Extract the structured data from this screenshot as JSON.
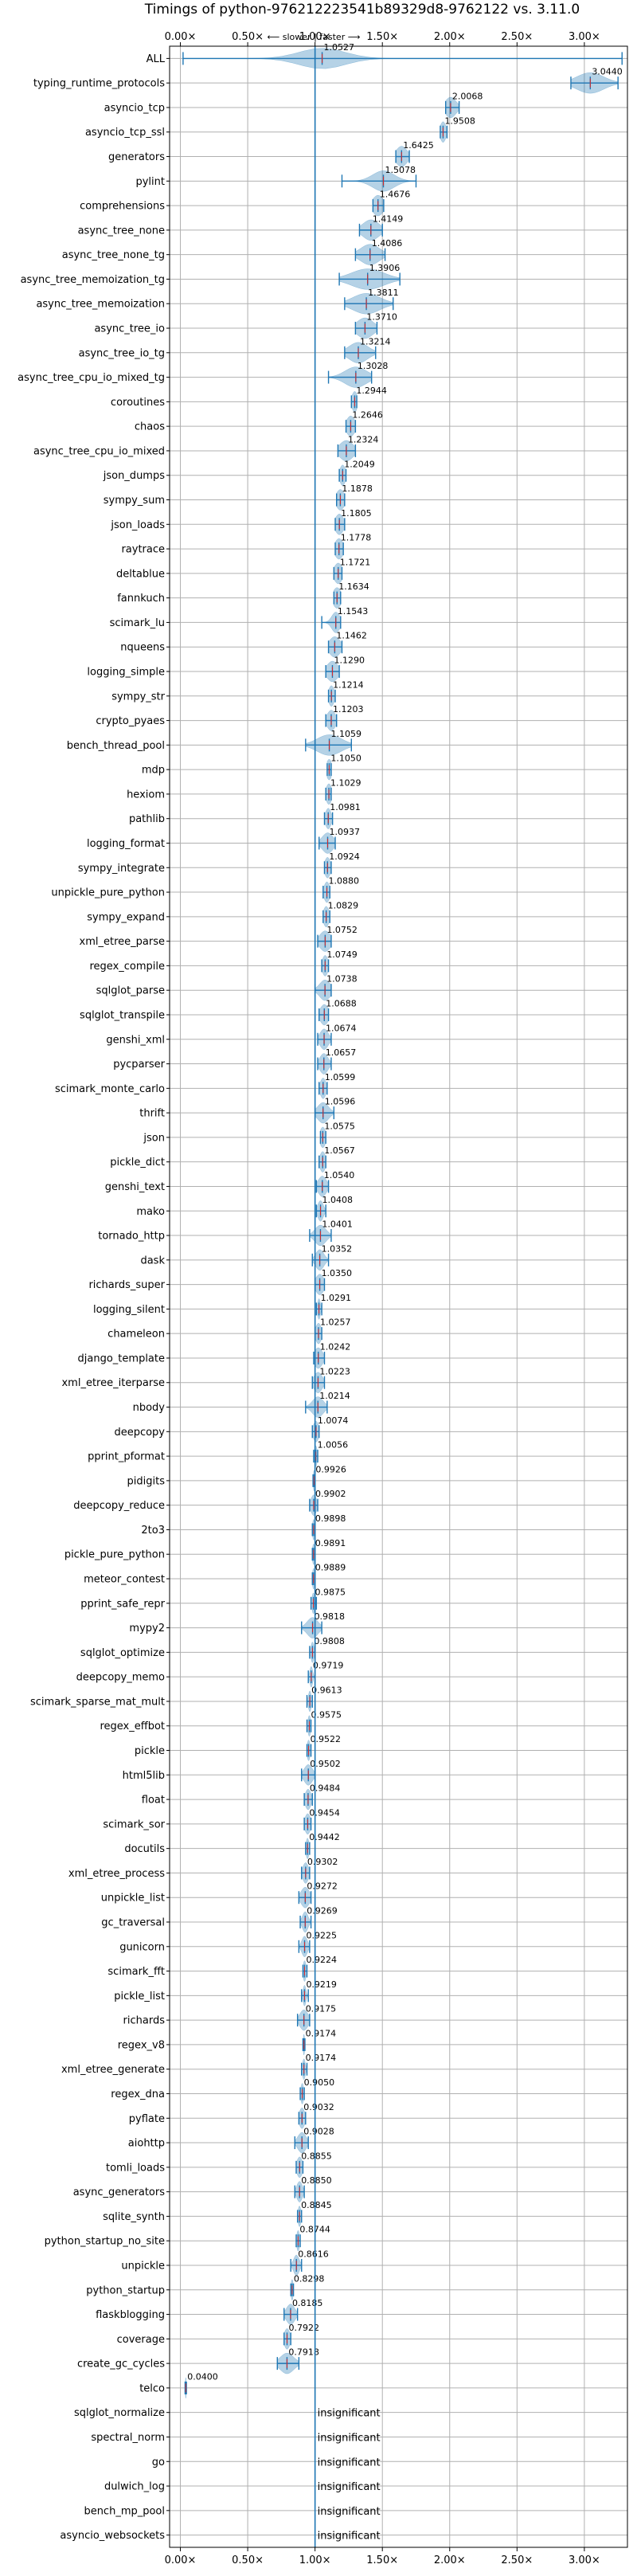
{
  "chart_data": {
    "type": "violin",
    "title": "Timings of python-976212223541b89329d8-9762122 vs. 3.11.0",
    "annotation": "⟵ slower | faster ⟶",
    "xlabel": "",
    "ylabel": "",
    "xlim": [
      -0.08,
      3.32
    ],
    "x_ticks": [
      0.0,
      0.5,
      1.0,
      1.5,
      2.0,
      2.5,
      3.0
    ],
    "x_tick_labels": [
      "0.00×",
      "0.50×",
      "1.00×",
      "1.50×",
      "2.00×",
      "2.50×",
      "3.00×"
    ],
    "reference_line": 1.0,
    "grid": true,
    "colors": {
      "violin": "#1f77b4",
      "median_marker": "#d62728",
      "grid": "#b0b0b0"
    },
    "insignificant_text": "insignificant",
    "benchmarks": [
      {
        "name": "ALL",
        "value": 1.0527,
        "label": "1.0527",
        "low": 0.02,
        "high": 3.28,
        "spread": 0.17
      },
      {
        "name": "typing_runtime_protocols",
        "value": 3.044,
        "label": "3.0440",
        "low": 2.9,
        "high": 3.25,
        "spread": 0.1
      },
      {
        "name": "asyncio_tcp",
        "value": 2.0068,
        "label": "2.0068",
        "low": 1.97,
        "high": 2.07,
        "spread": 0.04
      },
      {
        "name": "asyncio_tcp_ssl",
        "value": 1.9508,
        "label": "1.9508",
        "low": 1.93,
        "high": 1.98,
        "spread": 0.02
      },
      {
        "name": "generators",
        "value": 1.6425,
        "label": "1.6425",
        "low": 1.6,
        "high": 1.7,
        "spread": 0.04
      },
      {
        "name": "pylint",
        "value": 1.5078,
        "label": "1.5078",
        "low": 1.2,
        "high": 1.75,
        "spread": 0.08
      },
      {
        "name": "comprehensions",
        "value": 1.4676,
        "label": "1.4676",
        "low": 1.43,
        "high": 1.51,
        "spread": 0.04
      },
      {
        "name": "async_tree_none",
        "value": 1.4149,
        "label": "1.4149",
        "low": 1.33,
        "high": 1.5,
        "spread": 0.06
      },
      {
        "name": "async_tree_none_tg",
        "value": 1.4086,
        "label": "1.4086",
        "low": 1.3,
        "high": 1.52,
        "spread": 0.07
      },
      {
        "name": "async_tree_memoization_tg",
        "value": 1.3906,
        "label": "1.3906",
        "low": 1.18,
        "high": 1.63,
        "spread": 0.12
      },
      {
        "name": "async_tree_memoization",
        "value": 1.3811,
        "label": "1.3811",
        "low": 1.22,
        "high": 1.58,
        "spread": 0.1
      },
      {
        "name": "async_tree_io",
        "value": 1.371,
        "label": "1.3710",
        "low": 1.3,
        "high": 1.46,
        "spread": 0.06
      },
      {
        "name": "async_tree_io_tg",
        "value": 1.3214,
        "label": "1.3214",
        "low": 1.22,
        "high": 1.45,
        "spread": 0.07
      },
      {
        "name": "async_tree_cpu_io_mixed_tg",
        "value": 1.3028,
        "label": "1.3028",
        "low": 1.1,
        "high": 1.42,
        "spread": 0.08
      },
      {
        "name": "coroutines",
        "value": 1.2944,
        "label": "1.2944",
        "low": 1.27,
        "high": 1.31,
        "spread": 0.02
      },
      {
        "name": "chaos",
        "value": 1.2646,
        "label": "1.2646",
        "low": 1.23,
        "high": 1.3,
        "spread": 0.03
      },
      {
        "name": "async_tree_cpu_io_mixed",
        "value": 1.2324,
        "label": "1.2324",
        "low": 1.17,
        "high": 1.3,
        "spread": 0.05
      },
      {
        "name": "json_dumps",
        "value": 1.2049,
        "label": "1.2049",
        "low": 1.18,
        "high": 1.23,
        "spread": 0.02
      },
      {
        "name": "sympy_sum",
        "value": 1.1878,
        "label": "1.1878",
        "low": 1.16,
        "high": 1.22,
        "spread": 0.03
      },
      {
        "name": "json_loads",
        "value": 1.1805,
        "label": "1.1805",
        "low": 1.15,
        "high": 1.22,
        "spread": 0.03
      },
      {
        "name": "raytrace",
        "value": 1.1778,
        "label": "1.1778",
        "low": 1.15,
        "high": 1.21,
        "spread": 0.03
      },
      {
        "name": "deltablue",
        "value": 1.1721,
        "label": "1.1721",
        "low": 1.14,
        "high": 1.2,
        "spread": 0.03
      },
      {
        "name": "fannkuch",
        "value": 1.1634,
        "label": "1.1634",
        "low": 1.14,
        "high": 1.19,
        "spread": 0.03
      },
      {
        "name": "scimark_lu",
        "value": 1.1543,
        "label": "1.1543",
        "low": 1.05,
        "high": 1.19,
        "spread": 0.03
      },
      {
        "name": "nqueens",
        "value": 1.1462,
        "label": "1.1462",
        "low": 1.1,
        "high": 1.2,
        "spread": 0.04
      },
      {
        "name": "logging_simple",
        "value": 1.129,
        "label": "1.1290",
        "low": 1.08,
        "high": 1.18,
        "spread": 0.04
      },
      {
        "name": "sympy_str",
        "value": 1.1214,
        "label": "1.1214",
        "low": 1.1,
        "high": 1.15,
        "spread": 0.02
      },
      {
        "name": "crypto_pyaes",
        "value": 1.1203,
        "label": "1.1203",
        "low": 1.08,
        "high": 1.16,
        "spread": 0.03
      },
      {
        "name": "bench_thread_pool",
        "value": 1.1059,
        "label": "1.1059",
        "low": 0.93,
        "high": 1.27,
        "spread": 0.09
      },
      {
        "name": "mdp",
        "value": 1.105,
        "label": "1.1050",
        "low": 1.09,
        "high": 1.12,
        "spread": 0.02
      },
      {
        "name": "hexiom",
        "value": 1.1029,
        "label": "1.1029",
        "low": 1.08,
        "high": 1.12,
        "spread": 0.02
      },
      {
        "name": "pathlib",
        "value": 1.0981,
        "label": "1.0981",
        "low": 1.07,
        "high": 1.13,
        "spread": 0.02
      },
      {
        "name": "logging_format",
        "value": 1.0937,
        "label": "1.0937",
        "low": 1.03,
        "high": 1.15,
        "spread": 0.04
      },
      {
        "name": "sympy_integrate",
        "value": 1.0924,
        "label": "1.0924",
        "low": 1.07,
        "high": 1.12,
        "spread": 0.02
      },
      {
        "name": "unpickle_pure_python",
        "value": 1.088,
        "label": "1.0880",
        "low": 1.06,
        "high": 1.11,
        "spread": 0.02
      },
      {
        "name": "sympy_expand",
        "value": 1.0829,
        "label": "1.0829",
        "low": 1.06,
        "high": 1.11,
        "spread": 0.02
      },
      {
        "name": "xml_etree_parse",
        "value": 1.0752,
        "label": "1.0752",
        "low": 1.02,
        "high": 1.12,
        "spread": 0.04
      },
      {
        "name": "regex_compile",
        "value": 1.0749,
        "label": "1.0749",
        "low": 1.05,
        "high": 1.1,
        "spread": 0.02
      },
      {
        "name": "sqlglot_parse",
        "value": 1.0738,
        "label": "1.0738",
        "low": 1.0,
        "high": 1.12,
        "spread": 0.04
      },
      {
        "name": "sqlglot_transpile",
        "value": 1.0688,
        "label": "1.0688",
        "low": 1.03,
        "high": 1.1,
        "spread": 0.03
      },
      {
        "name": "genshi_xml",
        "value": 1.0674,
        "label": "1.0674",
        "low": 1.02,
        "high": 1.12,
        "spread": 0.03
      },
      {
        "name": "pycparser",
        "value": 1.0657,
        "label": "1.0657",
        "low": 1.02,
        "high": 1.12,
        "spread": 0.03
      },
      {
        "name": "scimark_monte_carlo",
        "value": 1.0599,
        "label": "1.0599",
        "low": 1.03,
        "high": 1.09,
        "spread": 0.02
      },
      {
        "name": "thrift",
        "value": 1.0596,
        "label": "1.0596",
        "low": 1.0,
        "high": 1.14,
        "spread": 0.04
      },
      {
        "name": "json",
        "value": 1.0575,
        "label": "1.0575",
        "low": 1.04,
        "high": 1.08,
        "spread": 0.02
      },
      {
        "name": "pickle_dict",
        "value": 1.0567,
        "label": "1.0567",
        "low": 1.03,
        "high": 1.08,
        "spread": 0.02
      },
      {
        "name": "genshi_text",
        "value": 1.054,
        "label": "1.0540",
        "low": 1.01,
        "high": 1.1,
        "spread": 0.03
      },
      {
        "name": "mako",
        "value": 1.0408,
        "label": "1.0408",
        "low": 1.01,
        "high": 1.08,
        "spread": 0.02
      },
      {
        "name": "tornado_http",
        "value": 1.0401,
        "label": "1.0401",
        "low": 0.96,
        "high": 1.12,
        "spread": 0.04
      },
      {
        "name": "dask",
        "value": 1.0352,
        "label": "1.0352",
        "low": 0.98,
        "high": 1.1,
        "spread": 0.03
      },
      {
        "name": "richards_super",
        "value": 1.035,
        "label": "1.0350",
        "low": 1.0,
        "high": 1.07,
        "spread": 0.03
      },
      {
        "name": "logging_silent",
        "value": 1.0291,
        "label": "1.0291",
        "low": 1.01,
        "high": 1.05,
        "spread": 0.01
      },
      {
        "name": "chameleon",
        "value": 1.0257,
        "label": "1.0257",
        "low": 1.0,
        "high": 1.05,
        "spread": 0.02
      },
      {
        "name": "django_template",
        "value": 1.0242,
        "label": "1.0242",
        "low": 0.99,
        "high": 1.07,
        "spread": 0.03
      },
      {
        "name": "xml_etree_iterparse",
        "value": 1.0223,
        "label": "1.0223",
        "low": 0.98,
        "high": 1.07,
        "spread": 0.03
      },
      {
        "name": "nbody",
        "value": 1.0214,
        "label": "1.0214",
        "low": 0.93,
        "high": 1.09,
        "spread": 0.04
      },
      {
        "name": "deepcopy",
        "value": 1.0074,
        "label": "1.0074",
        "low": 0.98,
        "high": 1.03,
        "spread": 0.02
      },
      {
        "name": "pprint_pformat",
        "value": 1.0056,
        "label": "1.0056",
        "low": 0.99,
        "high": 1.02,
        "spread": 0.01
      },
      {
        "name": "pidigits",
        "value": 0.9926,
        "label": "0.9926",
        "low": 0.985,
        "high": 1.0,
        "spread": 0.005
      },
      {
        "name": "deepcopy_reduce",
        "value": 0.9902,
        "label": "0.9902",
        "low": 0.96,
        "high": 1.02,
        "spread": 0.02
      },
      {
        "name": "2to3",
        "value": 0.9898,
        "label": "0.9898",
        "low": 0.98,
        "high": 1.0,
        "spread": 0.008
      },
      {
        "name": "pickle_pure_python",
        "value": 0.9891,
        "label": "0.9891",
        "low": 0.98,
        "high": 1.0,
        "spread": 0.008
      },
      {
        "name": "meteor_contest",
        "value": 0.9889,
        "label": "0.9889",
        "low": 0.98,
        "high": 1.0,
        "spread": 0.008
      },
      {
        "name": "pprint_safe_repr",
        "value": 0.9875,
        "label": "0.9875",
        "low": 0.97,
        "high": 1.01,
        "spread": 0.01
      },
      {
        "name": "mypy2",
        "value": 0.9818,
        "label": "0.9818",
        "low": 0.9,
        "high": 1.05,
        "spread": 0.04
      },
      {
        "name": "sqlglot_optimize",
        "value": 0.9808,
        "label": "0.9808",
        "low": 0.96,
        "high": 1.0,
        "spread": 0.01
      },
      {
        "name": "deepcopy_memo",
        "value": 0.9719,
        "label": "0.9719",
        "low": 0.95,
        "high": 1.0,
        "spread": 0.01
      },
      {
        "name": "scimark_sparse_mat_mult",
        "value": 0.9613,
        "label": "0.9613",
        "low": 0.94,
        "high": 0.98,
        "spread": 0.01
      },
      {
        "name": "regex_effbot",
        "value": 0.9575,
        "label": "0.9575",
        "low": 0.94,
        "high": 0.97,
        "spread": 0.01
      },
      {
        "name": "pickle",
        "value": 0.9522,
        "label": "0.9522",
        "low": 0.94,
        "high": 0.97,
        "spread": 0.01
      },
      {
        "name": "html5lib",
        "value": 0.9502,
        "label": "0.9502",
        "low": 0.9,
        "high": 1.0,
        "spread": 0.03
      },
      {
        "name": "float",
        "value": 0.9484,
        "label": "0.9484",
        "low": 0.92,
        "high": 0.98,
        "spread": 0.02
      },
      {
        "name": "scimark_sor",
        "value": 0.9454,
        "label": "0.9454",
        "low": 0.92,
        "high": 0.97,
        "spread": 0.02
      },
      {
        "name": "docutils",
        "value": 0.9442,
        "label": "0.9442",
        "low": 0.93,
        "high": 0.96,
        "spread": 0.01
      },
      {
        "name": "xml_etree_process",
        "value": 0.9302,
        "label": "0.9302",
        "low": 0.9,
        "high": 0.96,
        "spread": 0.02
      },
      {
        "name": "unpickle_list",
        "value": 0.9272,
        "label": "0.9272",
        "low": 0.88,
        "high": 0.97,
        "spread": 0.03
      },
      {
        "name": "gc_traversal",
        "value": 0.9269,
        "label": "0.9269",
        "low": 0.89,
        "high": 0.97,
        "spread": 0.02
      },
      {
        "name": "gunicorn",
        "value": 0.9225,
        "label": "0.9225",
        "low": 0.88,
        "high": 0.96,
        "spread": 0.02
      },
      {
        "name": "scimark_fft",
        "value": 0.9224,
        "label": "0.9224",
        "low": 0.91,
        "high": 0.94,
        "spread": 0.01
      },
      {
        "name": "pickle_list",
        "value": 0.9219,
        "label": "0.9219",
        "low": 0.9,
        "high": 0.95,
        "spread": 0.01
      },
      {
        "name": "richards",
        "value": 0.9175,
        "label": "0.9175",
        "low": 0.87,
        "high": 0.96,
        "spread": 0.03
      },
      {
        "name": "regex_v8",
        "value": 0.9174,
        "label": "0.9174",
        "low": 0.91,
        "high": 0.925,
        "spread": 0.005
      },
      {
        "name": "xml_etree_generate",
        "value": 0.9174,
        "label": "0.9174",
        "low": 0.9,
        "high": 0.94,
        "spread": 0.01
      },
      {
        "name": "regex_dna",
        "value": 0.905,
        "label": "0.9050",
        "low": 0.89,
        "high": 0.92,
        "spread": 0.01
      },
      {
        "name": "pyflate",
        "value": 0.9032,
        "label": "0.9032",
        "low": 0.88,
        "high": 0.93,
        "spread": 0.02
      },
      {
        "name": "aiohttp",
        "value": 0.9028,
        "label": "0.9028",
        "low": 0.85,
        "high": 0.95,
        "spread": 0.03
      },
      {
        "name": "tomli_loads",
        "value": 0.8855,
        "label": "0.8855",
        "low": 0.86,
        "high": 0.91,
        "spread": 0.02
      },
      {
        "name": "async_generators",
        "value": 0.885,
        "label": "0.8850",
        "low": 0.85,
        "high": 0.92,
        "spread": 0.02
      },
      {
        "name": "sqlite_synth",
        "value": 0.8845,
        "label": "0.8845",
        "low": 0.87,
        "high": 0.9,
        "spread": 0.01
      },
      {
        "name": "python_startup_no_site",
        "value": 0.8744,
        "label": "0.8744",
        "low": 0.86,
        "high": 0.89,
        "spread": 0.01
      },
      {
        "name": "unpickle",
        "value": 0.8616,
        "label": "0.8616",
        "low": 0.82,
        "high": 0.9,
        "spread": 0.02
      },
      {
        "name": "python_startup",
        "value": 0.8298,
        "label": "0.8298",
        "low": 0.82,
        "high": 0.84,
        "spread": 0.008
      },
      {
        "name": "flaskblogging",
        "value": 0.8185,
        "label": "0.8185",
        "low": 0.77,
        "high": 0.87,
        "spread": 0.03
      },
      {
        "name": "coverage",
        "value": 0.7922,
        "label": "0.7922",
        "low": 0.77,
        "high": 0.82,
        "spread": 0.02
      },
      {
        "name": "create_gc_cycles",
        "value": 0.7918,
        "label": "0.7918",
        "low": 0.72,
        "high": 0.88,
        "spread": 0.05
      },
      {
        "name": "telco",
        "value": 0.04,
        "label": "0.0400",
        "low": 0.035,
        "high": 0.045,
        "spread": 0.002
      },
      {
        "name": "sqlglot_normalize",
        "insignificant": true
      },
      {
        "name": "spectral_norm",
        "insignificant": true
      },
      {
        "name": "go",
        "insignificant": true
      },
      {
        "name": "dulwich_log",
        "insignificant": true
      },
      {
        "name": "bench_mp_pool",
        "insignificant": true
      },
      {
        "name": "asyncio_websockets",
        "insignificant": true
      }
    ]
  }
}
